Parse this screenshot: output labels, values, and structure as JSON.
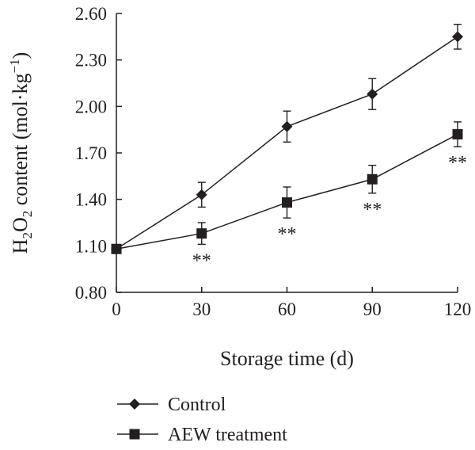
{
  "chart_data": {
    "type": "line",
    "xlabel": "Storage time (d)",
    "ylabel": {
      "prefix": "H",
      "sub1": "2",
      "mid": "O",
      "sub2": "2",
      "rest": " content (mol·kg",
      "sup": "−1",
      "close": ")"
    },
    "x": [
      0,
      30,
      60,
      90,
      120
    ],
    "xticks": [
      "0",
      "30",
      "60",
      "90",
      "120"
    ],
    "xlim": [
      0,
      120
    ],
    "yticks": [
      "0.80",
      "1.10",
      "1.40",
      "1.70",
      "2.00",
      "2.30",
      "2.60"
    ],
    "ylim": [
      0.8,
      2.6
    ],
    "grid": false,
    "legend_position": "bottom-left",
    "significance_marker": "**",
    "series": [
      {
        "name": "Control",
        "marker": "diamond",
        "values": [
          1.08,
          1.43,
          1.87,
          2.08,
          2.45
        ],
        "errors": [
          0.0,
          0.08,
          0.1,
          0.1,
          0.08
        ],
        "significant": [
          false,
          false,
          false,
          false,
          false
        ]
      },
      {
        "name": "AEW treatment",
        "marker": "square",
        "values": [
          1.08,
          1.18,
          1.38,
          1.53,
          1.82
        ],
        "errors": [
          0.0,
          0.07,
          0.1,
          0.09,
          0.08
        ],
        "significant": [
          false,
          true,
          true,
          true,
          true
        ]
      }
    ],
    "colors": {
      "line": "#231f20"
    }
  }
}
